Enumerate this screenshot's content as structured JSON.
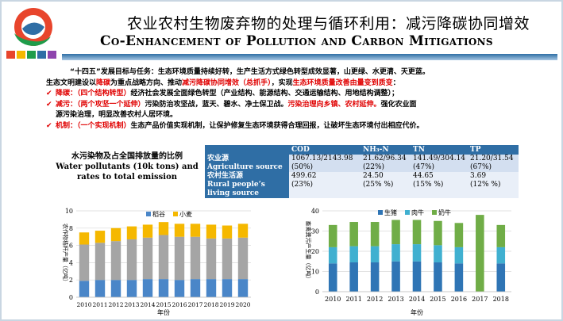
{
  "title_zh": "农业农村生物废弃物的处理与循环利用：减污降碳协同增效",
  "title_en": "Co-Enhancement of Pollution and Carbon Mitigations",
  "colors": {
    "red": "#e00000",
    "header_blue": "#2f6ea5"
  },
  "paragraph": {
    "line1": "“十四五”发展目标与任务：生态环境质量持续好转，生产生活方式绿色转型成效显著，山更绿、水更清、天更蓝。",
    "line2_a": "生态文明建设以",
    "line2_b": "降碳",
    "line2_c": "为重点战略方向、推动",
    "line2_d": "减污降碳协同增效（总抓手）",
    "line2_e": "，实现",
    "line2_f": "生态环境质量改善由量变到质变",
    "line2_g": "："
  },
  "bullets": [
    {
      "head": "降碳：（四个结构转型）",
      "text": "经济社会发展全面绿色转型（产业结构、能源结构、交通运输结构、用地结构调整）；"
    },
    {
      "head": "减污：（两个攻坚一个延伸）",
      "text": "污染防治攻坚战，蓝天、碧水、净土保卫战。",
      "red_tail": "污染治理向乡镇、农村延伸。",
      "tail": "强化农业面",
      "line2": "源污染治理，明显改善农村人居环境。"
    },
    {
      "head": "机制：（一个实现机制）",
      "text": "生态产品价值实现机制，让保护修复生态环境获得合理回报，让破坏生态环境付出相应代价。"
    }
  ],
  "table_label": {
    "zh": "水污染物及占全国排放量的比例",
    "en1": "Water pollutants (10k tons) and",
    "en2": "rates to total emission"
  },
  "table": {
    "headers": [
      "",
      "COD",
      "NH₃-N",
      "TN",
      "TP"
    ],
    "rows": [
      {
        "name_zh": "农业源",
        "name_en": "Agriculture source",
        "cells": [
          [
            "1067.13/2143.98",
            "(50%)"
          ],
          [
            "21.62/96.34",
            "(22%)"
          ],
          [
            "141.49/304.14",
            "(47%)"
          ],
          [
            "21.20/31.54",
            "(67%)"
          ]
        ]
      },
      {
        "name_zh": "农村生活源",
        "name_en": "Rural people’s living source",
        "cells": [
          [
            "499.62",
            "(23%)"
          ],
          [
            "24.50",
            "(25% %)"
          ],
          [
            "44.65",
            "(15% %)"
          ],
          [
            "3.69",
            "(12% %)"
          ]
        ]
      }
    ]
  },
  "chart_data": [
    {
      "type": "bar",
      "stacked": true,
      "categories": [
        "2010",
        "2011",
        "2012",
        "2013",
        "2014",
        "2015",
        "2016",
        "2017",
        "2018",
        "2019",
        "2020"
      ],
      "ylim": [
        0,
        10
      ],
      "yticks": [
        0,
        2,
        4,
        6,
        8,
        10
      ],
      "ylabel": "农作物秸秆产量（亿吨）",
      "xlabel": "年份",
      "legend_position": "top",
      "series": [
        {
          "name": "稻谷",
          "color": "#4a86c8",
          "values": [
            1.9,
            2.0,
            2.0,
            2.0,
            2.1,
            2.1,
            2.0,
            2.1,
            2.1,
            2.1,
            2.1
          ]
        },
        {
          "name": "",
          "color": "#a5a5a5",
          "values": [
            4.2,
            4.3,
            4.5,
            4.7,
            4.8,
            5.1,
            5.0,
            4.9,
            4.7,
            4.7,
            4.8
          ]
        },
        {
          "name": "小麦",
          "color": "#f5b800",
          "values": [
            1.4,
            1.4,
            1.5,
            1.5,
            1.5,
            1.5,
            1.5,
            1.5,
            1.6,
            1.5,
            1.6
          ]
        }
      ]
    },
    {
      "type": "bar",
      "stacked": true,
      "categories": [
        "2010",
        "2011",
        "2012",
        "2013",
        "2014",
        "2015",
        "2016",
        "2017",
        "2018"
      ],
      "ylim": [
        0,
        40
      ],
      "yticks": [
        0,
        10,
        20,
        30,
        40
      ],
      "ylabel": "畜禽粪污产生量（亿吨）",
      "xlabel": "年份",
      "legend_position": "top",
      "series": [
        {
          "name": "生猪",
          "color": "#2f75b5",
          "values": [
            14,
            14.5,
            14.5,
            15,
            15,
            14.5,
            14,
            0,
            14
          ]
        },
        {
          "name": "肉牛",
          "color": "#40b0d0",
          "values": [
            8,
            8,
            8,
            8.5,
            8.5,
            8.5,
            8,
            0,
            8
          ]
        },
        {
          "name": "奶牛",
          "color": "#70ad47",
          "values": [
            11,
            12,
            12,
            12,
            12,
            12,
            12,
            38,
            11
          ]
        }
      ]
    }
  ]
}
